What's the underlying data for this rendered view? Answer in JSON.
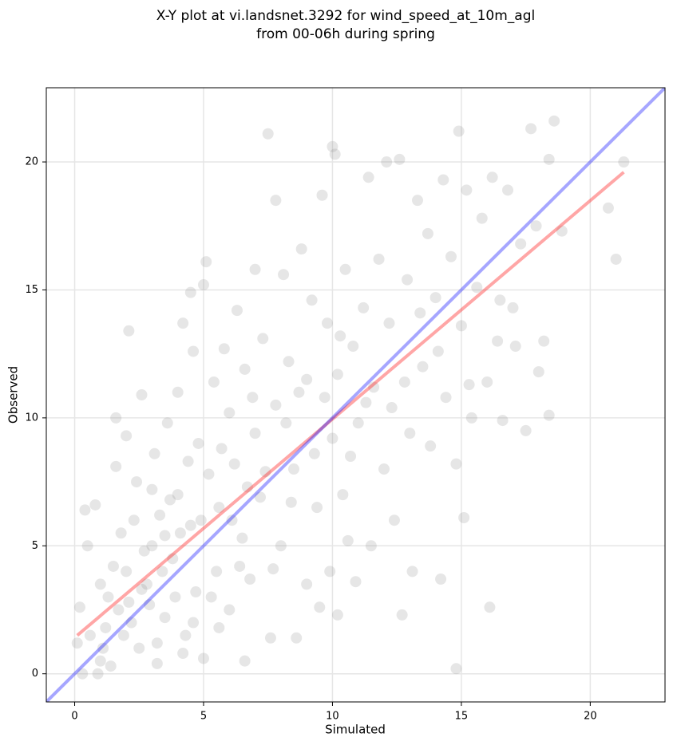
{
  "chart_data": {
    "type": "scatter",
    "title": [
      "X-Y plot at vi.landsnet.3292 for wind_speed_at_10m_agl",
      "from 00-06h during spring"
    ],
    "xlabel": "Simulated",
    "ylabel": "Observed",
    "xlim": [
      -1.1,
      22.9
    ],
    "ylim": [
      -1.1,
      22.9
    ],
    "xticks": [
      0,
      5,
      10,
      15,
      20
    ],
    "yticks": [
      0,
      5,
      10,
      15,
      20
    ],
    "grid": true,
    "color": "#808080",
    "x": [
      0.1,
      0.2,
      0.5,
      0.4,
      0.8,
      0.9,
      1.0,
      1.2,
      1.3,
      1.5,
      1.6,
      1.6,
      1.8,
      2.0,
      2.1,
      2.2,
      2.4,
      2.5,
      2.6,
      2.8,
      3.0,
      3.1,
      3.2,
      3.3,
      3.5,
      3.6,
      3.8,
      4.0,
      4.0,
      4.2,
      4.3,
      4.5,
      4.5,
      4.6,
      4.7,
      4.8,
      5.0,
      5.0,
      5.1,
      5.2,
      5.4,
      5.5,
      5.6,
      5.8,
      6.0,
      6.0,
      6.2,
      6.3,
      6.5,
      6.6,
      6.8,
      7.0,
      7.0,
      7.2,
      7.3,
      7.5,
      7.6,
      7.8,
      7.8,
      8.0,
      8.1,
      8.3,
      8.5,
      8.6,
      8.8,
      9.0,
      9.0,
      9.2,
      9.4,
      9.5,
      9.6,
      9.8,
      9.9,
      10.0,
      10.0,
      10.1,
      10.2,
      10.2,
      10.4,
      10.5,
      10.6,
      10.8,
      10.9,
      11.0,
      11.2,
      11.4,
      11.5,
      11.6,
      11.8,
      12.0,
      12.1,
      12.2,
      12.4,
      12.6,
      12.7,
      12.9,
      13.0,
      13.1,
      13.3,
      13.5,
      13.7,
      13.8,
      14.0,
      14.2,
      14.3,
      14.4,
      14.6,
      14.8,
      14.9,
      14.8,
      15.0,
      15.1,
      15.2,
      15.4,
      15.6,
      15.8,
      16.0,
      16.1,
      16.2,
      16.4,
      16.6,
      16.8,
      17.0,
      17.3,
      17.5,
      17.7,
      17.9,
      18.0,
      18.2,
      18.4,
      18.4,
      18.6,
      18.9,
      20.7,
      21.0,
      21.3,
      0.3,
      0.6,
      1.0,
      1.4,
      1.7,
      2.0,
      2.3,
      2.7,
      2.9,
      3.4,
      3.7,
      3.9,
      4.1,
      4.4,
      4.6,
      4.9,
      5.3,
      5.7,
      6.1,
      6.4,
      6.7,
      6.9,
      7.4,
      7.7,
      8.2,
      8.4,
      8.7,
      9.3,
      9.7,
      10.3,
      10.7,
      11.3,
      12.3,
      12.8,
      13.4,
      14.1,
      15.3,
      16.5,
      17.1,
      1.1,
      1.9,
      2.1,
      2.6,
      3.2,
      3.5,
      5.6,
      6.6,
      4.2,
      3.0
    ],
    "values": [
      1.2,
      2.6,
      5.0,
      6.4,
      6.6,
      0.0,
      0.5,
      1.8,
      3.0,
      4.2,
      8.1,
      10.0,
      5.5,
      9.3,
      13.4,
      2.0,
      7.5,
      1.0,
      10.9,
      3.5,
      5.0,
      8.6,
      0.4,
      6.2,
      2.2,
      9.8,
      4.5,
      11.0,
      7.0,
      13.7,
      1.5,
      14.9,
      5.8,
      12.6,
      3.2,
      9.0,
      15.2,
      0.6,
      16.1,
      7.8,
      11.4,
      4.0,
      6.5,
      12.7,
      10.2,
      2.5,
      8.2,
      14.2,
      5.3,
      11.9,
      3.7,
      15.8,
      9.4,
      6.9,
      13.1,
      21.1,
      1.4,
      18.5,
      10.5,
      5.0,
      15.6,
      12.2,
      8.0,
      1.4,
      16.6,
      11.5,
      3.5,
      14.6,
      6.5,
      2.6,
      18.7,
      13.7,
      4.0,
      20.6,
      9.2,
      20.3,
      11.7,
      2.3,
      7.0,
      15.8,
      5.2,
      12.8,
      3.6,
      9.8,
      14.3,
      19.4,
      5.0,
      11.2,
      16.2,
      8.0,
      20.0,
      13.7,
      6.0,
      20.1,
      2.3,
      15.4,
      9.4,
      4.0,
      18.5,
      12.0,
      17.2,
      8.9,
      14.7,
      3.7,
      19.3,
      10.8,
      16.3,
      8.2,
      21.2,
      0.2,
      13.6,
      6.1,
      18.9,
      10.0,
      15.1,
      17.8,
      11.4,
      2.6,
      19.4,
      13.0,
      9.9,
      18.9,
      14.3,
      16.8,
      9.5,
      21.3,
      17.5,
      11.8,
      13.0,
      10.1,
      20.1,
      21.6,
      17.3,
      18.2,
      16.2,
      20.0,
      0.0,
      1.5,
      3.5,
      0.3,
      2.5,
      4.0,
      6.0,
      4.8,
      2.7,
      4.0,
      6.8,
      3.0,
      5.5,
      8.3,
      2.0,
      6.0,
      3.0,
      8.8,
      6.0,
      4.2,
      7.3,
      10.8,
      7.9,
      4.1,
      9.8,
      6.7,
      11.0,
      8.6,
      10.8,
      13.2,
      8.5,
      10.6,
      10.4,
      11.4,
      14.1,
      12.6,
      11.3,
      14.6,
      12.8,
      1.0,
      1.5,
      2.8,
      3.3,
      1.2,
      5.4,
      1.8,
      0.5,
      0.8,
      7.2
    ],
    "lines": [
      {
        "color": "#ff0000",
        "x": [
          0.1,
          21.3
        ],
        "values": [
          1.5,
          19.6
        ]
      },
      {
        "color": "#0000ff",
        "x": [
          -1.1,
          22.9
        ],
        "values": [
          -1.1,
          22.9
        ]
      }
    ]
  }
}
